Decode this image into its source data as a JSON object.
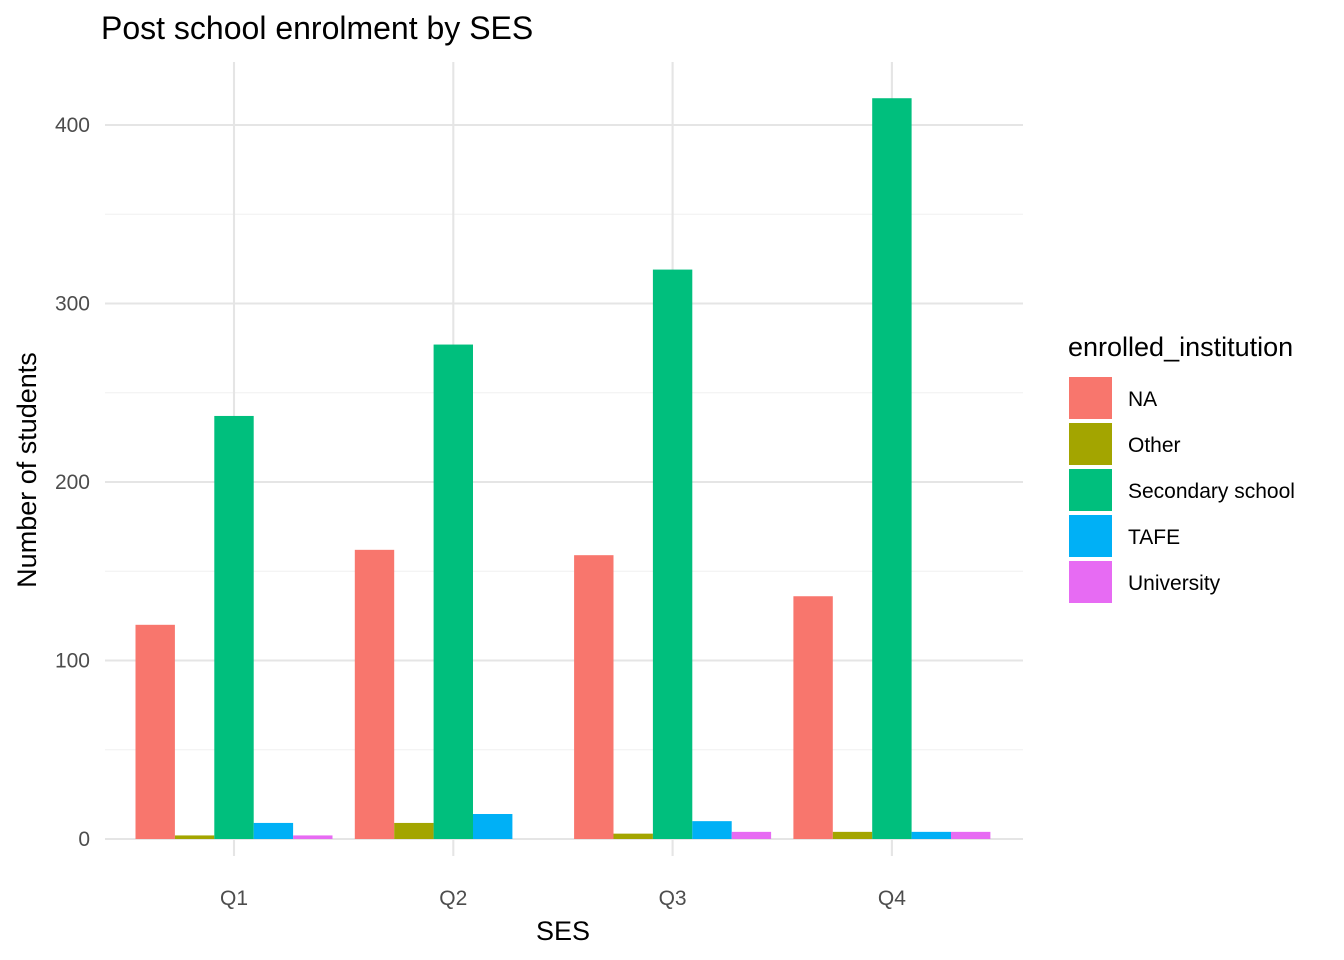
{
  "chart_data": {
    "type": "bar",
    "title": "Post school enrolment by SES",
    "xlabel": "SES",
    "ylabel": "Number of students",
    "categories": [
      "Q1",
      "Q2",
      "Q3",
      "Q4"
    ],
    "ylim": [
      0,
      430
    ],
    "y_ticks": [
      0,
      100,
      200,
      300,
      400
    ],
    "grid": true,
    "legend": {
      "title": "enrolled_institution",
      "position": "right"
    },
    "series": [
      {
        "name": "NA",
        "color": "#F8766D",
        "values": [
          120,
          162,
          159,
          136
        ]
      },
      {
        "name": "Other",
        "color": "#A3A500",
        "values": [
          2,
          9,
          3,
          4
        ]
      },
      {
        "name": "Secondary school",
        "color": "#00BF7D",
        "values": [
          237,
          277,
          319,
          415
        ]
      },
      {
        "name": "TAFE",
        "color": "#00B0F6",
        "values": [
          9,
          14,
          10,
          4
        ]
      },
      {
        "name": "University",
        "color": "#E76BF3",
        "values": [
          2,
          0,
          4,
          4
        ]
      }
    ]
  }
}
